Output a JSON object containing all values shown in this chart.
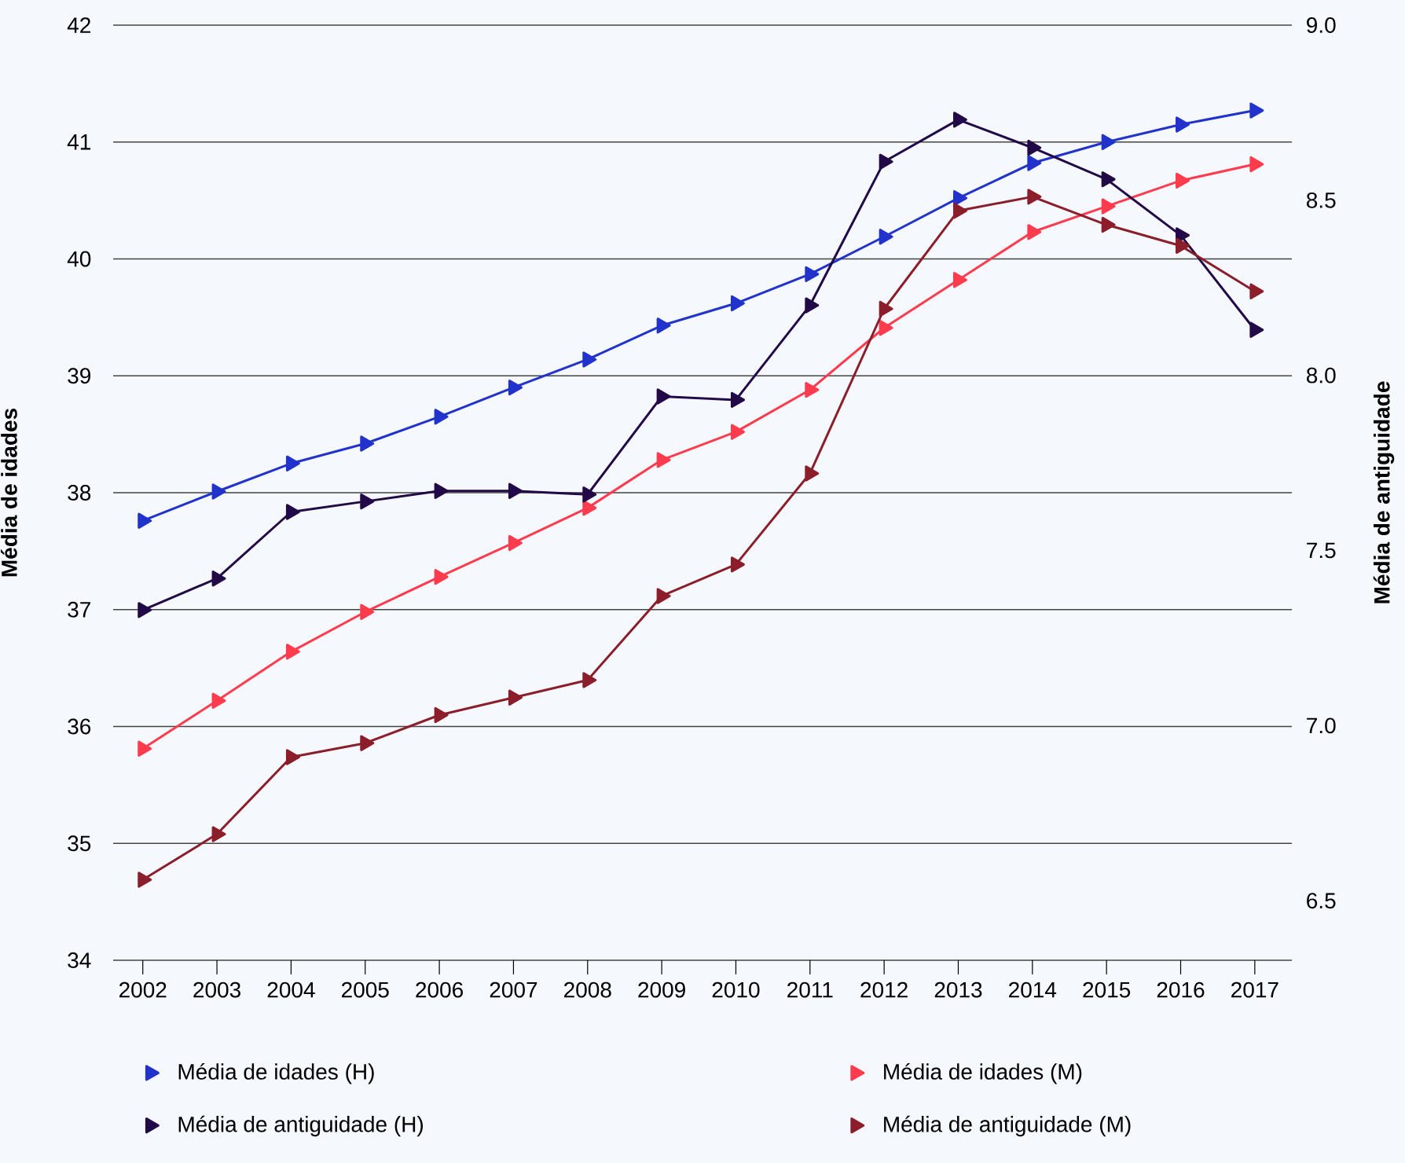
{
  "chart_data": {
    "type": "line",
    "ylabel": "Média de idades",
    "y2label": "Média de antiguidade",
    "x": [
      2002,
      2003,
      2004,
      2005,
      2006,
      2007,
      2008,
      2009,
      2010,
      2011,
      2012,
      2013,
      2014,
      2015,
      2016,
      2017
    ],
    "xlim": [
      2001.6,
      2017.5
    ],
    "xticks": [
      2002,
      2003,
      2004,
      2005,
      2006,
      2007,
      2008,
      2009,
      2010,
      2011,
      2012,
      2013,
      2014,
      2015,
      2016,
      2017
    ],
    "ylim": [
      34,
      42
    ],
    "yticks": [
      34,
      35,
      36,
      37,
      38,
      39,
      40,
      41,
      42
    ],
    "y2lim": [
      6.33,
      9.0
    ],
    "y2ticks": [
      6.5,
      {
        "value": 7.0,
        "label": "7.0"
      },
      7.5,
      {
        "value": 8.0,
        "label": "8.0"
      },
      8.5,
      {
        "value": 9.0,
        "label": "9.0"
      }
    ],
    "grid": "y",
    "legend": "bottom",
    "marker": "triangle",
    "line_style": "solid",
    "series": [
      {
        "name": "Média de idades (H)",
        "color": "#2233cc",
        "values": [
          37.76,
          38.01,
          38.25,
          38.42,
          38.65,
          38.9,
          39.14,
          39.43,
          39.62,
          39.87,
          40.19,
          40.52,
          40.82,
          41.0,
          41.15,
          41.27
        ]
      },
      {
        "name": "Média de idades (M)",
        "color": "#ff3b4e",
        "values": [
          35.81,
          36.22,
          36.64,
          36.98,
          37.28,
          37.57,
          37.87,
          38.28,
          38.52,
          38.88,
          39.41,
          39.82,
          40.23,
          40.45,
          40.67,
          40.81
        ]
      },
      {
        "name": "Média de antiguidade (H)",
        "color": "#220a48",
        "axis": "y2",
        "values": [
          7.33,
          7.42,
          7.61,
          7.64,
          7.67,
          7.67,
          7.66,
          7.94,
          7.93,
          8.2,
          8.61,
          8.73,
          8.65,
          8.56,
          8.4,
          8.13
        ]
      },
      {
        "name": "Média de antiguidade (M)",
        "color": "#8b1e2a",
        "axis": "y2",
        "values": [
          6.56,
          6.69,
          6.91,
          6.95,
          7.03,
          7.08,
          7.13,
          7.37,
          7.46,
          7.72,
          8.19,
          8.47,
          8.51,
          8.43,
          8.37,
          8.24
        ]
      }
    ]
  }
}
